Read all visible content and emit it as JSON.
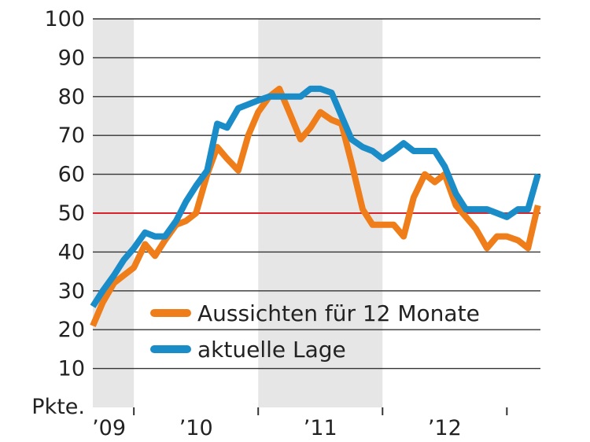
{
  "chart_data": {
    "type": "line",
    "y_unit_label": "Pkte.",
    "ylim": [
      0,
      100
    ],
    "yticks": [
      10,
      20,
      30,
      40,
      50,
      60,
      70,
      80,
      90,
      100
    ],
    "xlim": [
      2009.0,
      2012.6
    ],
    "year_labels": [
      {
        "x": 2009.13,
        "label": "’09"
      },
      {
        "x": 2009.83,
        "label": "’10"
      },
      {
        "x": 2010.83,
        "label": "’11"
      },
      {
        "x": 2011.83,
        "label": "’12"
      }
    ],
    "year_boundaries": [
      2009.33,
      2010.33,
      2011.33,
      2012.33
    ],
    "shaded_periods": [
      [
        2009.0,
        2009.33
      ],
      [
        2010.33,
        2011.33
      ]
    ],
    "reference_line": {
      "y": 50,
      "color": "#d9232a"
    },
    "colors": {
      "orange": "#ee7d1a",
      "blue": "#1a8cc8",
      "grid": "#333333",
      "shade": "#e6e6e6"
    },
    "series": [
      {
        "name": "Aussichten für 12 Monate",
        "color": "#ee7d1a",
        "points": [
          [
            2009.0,
            21
          ],
          [
            2009.08,
            27
          ],
          [
            2009.17,
            32
          ],
          [
            2009.25,
            34
          ],
          [
            2009.33,
            36
          ],
          [
            2009.42,
            42
          ],
          [
            2009.5,
            39
          ],
          [
            2009.58,
            43
          ],
          [
            2009.67,
            47
          ],
          [
            2009.75,
            48
          ],
          [
            2009.83,
            50
          ],
          [
            2009.92,
            60
          ],
          [
            2010.0,
            67
          ],
          [
            2010.08,
            64
          ],
          [
            2010.17,
            61
          ],
          [
            2010.25,
            70
          ],
          [
            2010.33,
            76
          ],
          [
            2010.42,
            80
          ],
          [
            2010.5,
            82
          ],
          [
            2010.58,
            76
          ],
          [
            2010.67,
            69
          ],
          [
            2010.75,
            72
          ],
          [
            2010.83,
            76
          ],
          [
            2010.92,
            74
          ],
          [
            2011.0,
            73
          ],
          [
            2011.08,
            63
          ],
          [
            2011.17,
            51
          ],
          [
            2011.25,
            47
          ],
          [
            2011.33,
            47
          ],
          [
            2011.42,
            47
          ],
          [
            2011.5,
            44
          ],
          [
            2011.58,
            54
          ],
          [
            2011.67,
            60
          ],
          [
            2011.75,
            58
          ],
          [
            2011.83,
            60
          ],
          [
            2011.92,
            52
          ],
          [
            2012.0,
            49
          ],
          [
            2012.08,
            46
          ],
          [
            2012.17,
            41
          ],
          [
            2012.25,
            44
          ],
          [
            2012.33,
            44
          ],
          [
            2012.42,
            43
          ],
          [
            2012.5,
            41
          ],
          [
            2012.58,
            52
          ]
        ]
      },
      {
        "name": "aktuelle Lage",
        "color": "#1a8cc8",
        "points": [
          [
            2009.0,
            26
          ],
          [
            2009.08,
            30
          ],
          [
            2009.17,
            34
          ],
          [
            2009.25,
            38
          ],
          [
            2009.33,
            41
          ],
          [
            2009.42,
            45
          ],
          [
            2009.5,
            44
          ],
          [
            2009.58,
            44
          ],
          [
            2009.67,
            48
          ],
          [
            2009.75,
            53
          ],
          [
            2009.83,
            57
          ],
          [
            2009.92,
            61
          ],
          [
            2010.0,
            73
          ],
          [
            2010.08,
            72
          ],
          [
            2010.17,
            77
          ],
          [
            2010.25,
            78
          ],
          [
            2010.33,
            79
          ],
          [
            2010.42,
            80
          ],
          [
            2010.5,
            80
          ],
          [
            2010.58,
            80
          ],
          [
            2010.67,
            80
          ],
          [
            2010.75,
            82
          ],
          [
            2010.83,
            82
          ],
          [
            2010.92,
            81
          ],
          [
            2011.0,
            75
          ],
          [
            2011.08,
            69
          ],
          [
            2011.17,
            67
          ],
          [
            2011.25,
            66
          ],
          [
            2011.33,
            64
          ],
          [
            2011.42,
            66
          ],
          [
            2011.5,
            68
          ],
          [
            2011.58,
            66
          ],
          [
            2011.67,
            66
          ],
          [
            2011.75,
            66
          ],
          [
            2011.83,
            62
          ],
          [
            2011.92,
            55
          ],
          [
            2012.0,
            51
          ],
          [
            2012.08,
            51
          ],
          [
            2012.17,
            51
          ],
          [
            2012.25,
            50
          ],
          [
            2012.33,
            49
          ],
          [
            2012.42,
            51
          ],
          [
            2012.5,
            51
          ],
          [
            2012.58,
            60
          ]
        ]
      }
    ]
  }
}
